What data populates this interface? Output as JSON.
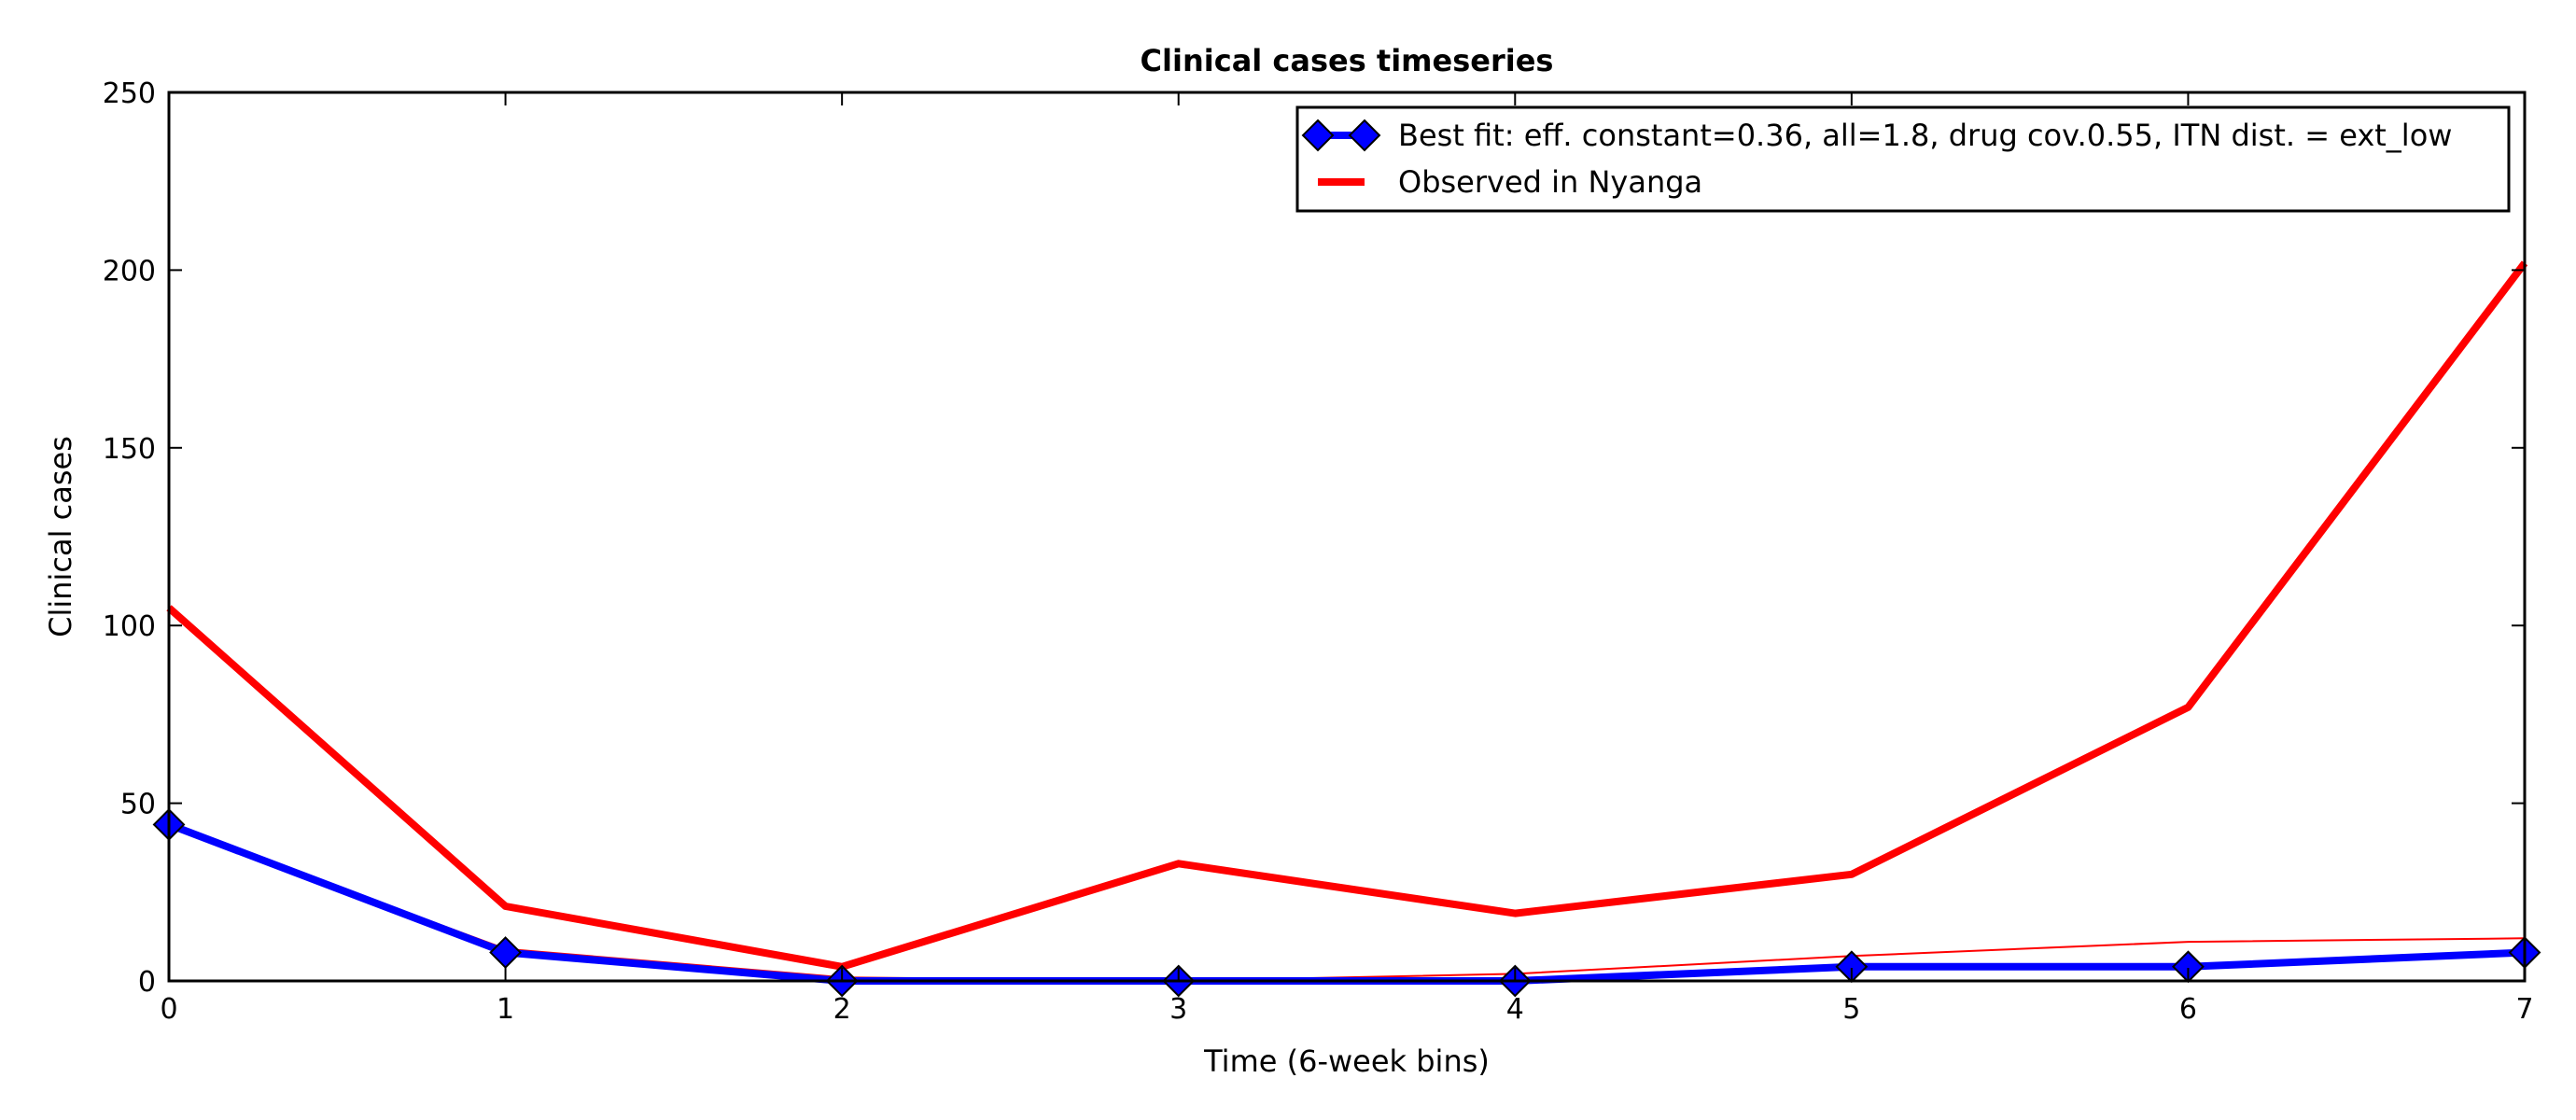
{
  "chart_data": {
    "type": "line",
    "title": "Clinical cases timeseries",
    "xlabel": "Time (6-week bins)",
    "ylabel": "Clinical cases",
    "xlim": [
      0,
      7
    ],
    "ylim": [
      0,
      250
    ],
    "x_ticks": [
      "0",
      "1",
      "2",
      "3",
      "4",
      "5",
      "6",
      "7"
    ],
    "y_ticks": [
      "0",
      "50",
      "100",
      "150",
      "200",
      "250"
    ],
    "x": [
      0,
      1,
      2,
      3,
      4,
      5,
      6,
      7
    ],
    "grid": false,
    "legend_position": "top-right",
    "series": [
      {
        "name": "Best fit: eff. constant=0.36, all=1.8, drug cov.0.55, ITN dist. = ext_low",
        "values": [
          44,
          8,
          0,
          0,
          0,
          4,
          4,
          8
        ],
        "color": "#0000ff",
        "marker": "diamond",
        "line_weight": "thick",
        "in_legend": true
      },
      {
        "name": "Observed in Nyanga",
        "values": [
          105,
          21,
          4,
          33,
          19,
          30,
          77,
          202
        ],
        "color": "#ff0000",
        "marker": "none",
        "line_weight": "thick",
        "in_legend": true
      },
      {
        "values": [
          44,
          9,
          1,
          0,
          2,
          7,
          11,
          12
        ],
        "color": "#ff0000",
        "marker": "none",
        "line_weight": "thin",
        "in_legend": false
      }
    ]
  }
}
